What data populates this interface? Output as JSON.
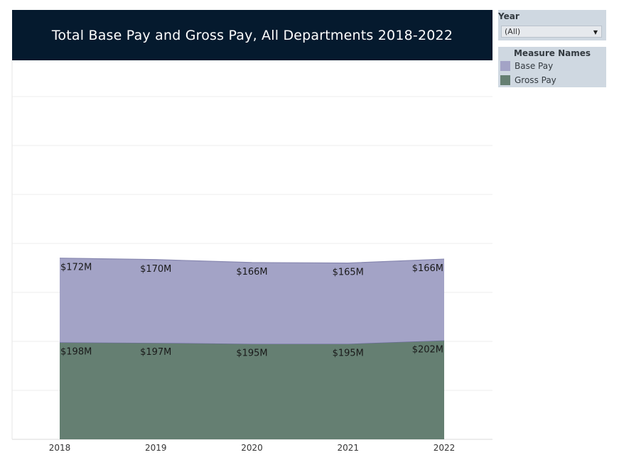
{
  "title": "Total Base Pay and Gross Pay, All Departments 2018-2022",
  "filter": {
    "label": "Year",
    "value": "(All)"
  },
  "legend": {
    "title": "Measure Names",
    "items": [
      {
        "label": "Base Pay",
        "color": "#a3a3c6"
      },
      {
        "label": "Gross Pay",
        "color": "#657f72"
      }
    ]
  },
  "chart_data": {
    "type": "area",
    "stacked": true,
    "title": "Total Base Pay and Gross Pay, All Departments 2018-2022",
    "x": [
      "2018",
      "2019",
      "2020",
      "2021",
      "2022"
    ],
    "series": [
      {
        "name": "Gross Pay",
        "values": [
          198,
          197,
          195,
          195,
          202
        ],
        "labels": [
          "$198M",
          "$197M",
          "$195M",
          "$195M",
          "$202M"
        ],
        "color": "#657f72"
      },
      {
        "name": "Base Pay",
        "values": [
          172,
          170,
          166,
          165,
          166
        ],
        "labels": [
          "$172M",
          "$170M",
          "$166M",
          "$165M",
          "$166M"
        ],
        "color": "#a3a3c6"
      }
    ],
    "ylim": [
      0,
      400
    ],
    "grid": true,
    "legend_position": "right"
  }
}
